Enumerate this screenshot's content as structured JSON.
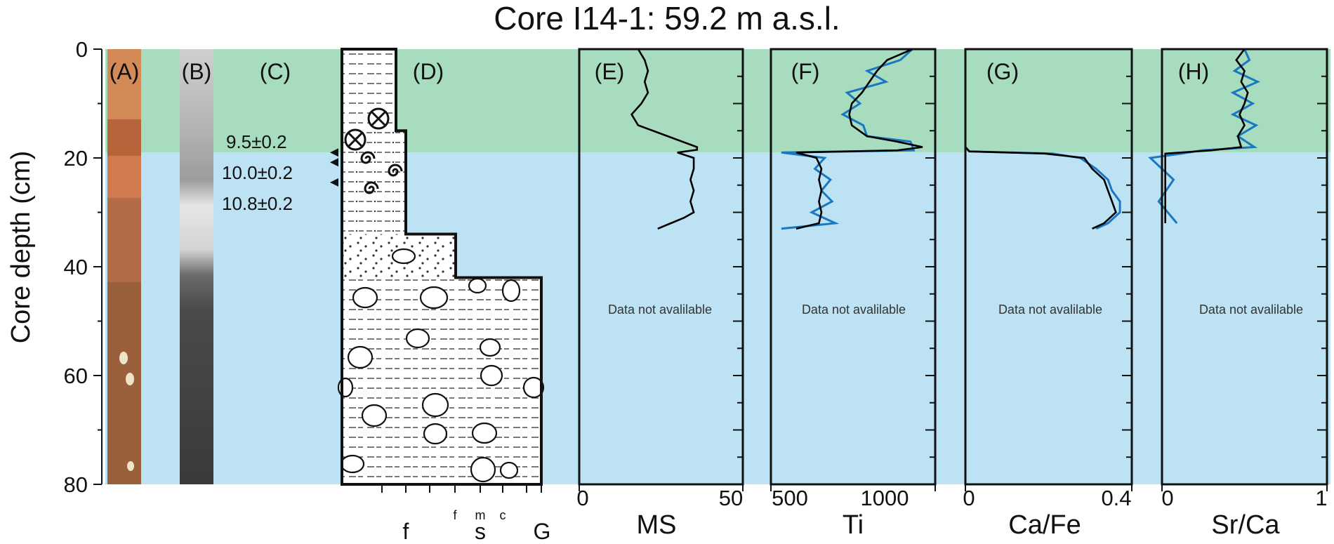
{
  "figure": {
    "title": "Core I14-1: 59.2 m a.s.l.",
    "y_axis_label": "Core depth (cm)",
    "y_ticks": [
      0,
      20,
      40,
      60,
      80
    ],
    "not_available_text": "Data not avalilable",
    "zone_colors": {
      "upper": "#a8dcbf",
      "lower": "#bde2f4"
    },
    "curve_colors": {
      "smoothed": "#000000",
      "raw": "#1a78c2"
    }
  },
  "panels": {
    "A": {
      "label": "(A)"
    },
    "B": {
      "label": "(B)"
    },
    "C": {
      "label": "(C)",
      "ages": [
        "9.5±0.2",
        "10.0±0.2",
        "10.8±0.2"
      ],
      "age_marker_depths_cm": [
        19.0,
        20.8,
        24.5
      ]
    },
    "D": {
      "label": "(D)",
      "grain_labels": {
        "f": "f",
        "s_fine": "f",
        "s_medium": "m",
        "s": "s",
        "s_coarse": "c",
        "g": "G"
      }
    },
    "E": {
      "label": "(E)",
      "xlabel": "MS",
      "xticks": [
        "0",
        "50"
      ]
    },
    "F": {
      "label": "(F)",
      "xlabel": "Ti",
      "xticks": [
        "500",
        "1000"
      ]
    },
    "G": {
      "label": "(G)",
      "xlabel": "Ca/Fe",
      "xticks": [
        "0",
        "0.4"
      ]
    },
    "H": {
      "label": "(H)",
      "xlabel": "Sr/Ca",
      "xticks": [
        "0",
        "1"
      ]
    }
  },
  "chart_data": {
    "type": "line",
    "ylabel": "Core depth (cm)",
    "ylim": [
      80,
      0
    ],
    "zone_boundary_depth_cm": 19,
    "series": [
      {
        "name": "MS",
        "xlim": [
          0,
          50
        ],
        "depth": [
          0,
          2,
          4,
          6,
          8,
          10,
          12,
          14,
          16,
          18,
          18.5,
          19,
          20,
          22,
          24,
          26,
          28,
          30,
          31,
          32,
          33
        ],
        "values": [
          18,
          20,
          21,
          20,
          21,
          19,
          16,
          18,
          27,
          36,
          36,
          30,
          35,
          35,
          34,
          35,
          34,
          35,
          32,
          28,
          24
        ]
      },
      {
        "name": "Ti",
        "xlim": [
          500,
          1150
        ],
        "depth": [
          0,
          2,
          4,
          6,
          8,
          10,
          12,
          14,
          16,
          17,
          18,
          18.6,
          19,
          20,
          22,
          24,
          26,
          28,
          30,
          32,
          33
        ],
        "values": [
          1060,
          960,
          920,
          890,
          860,
          820,
          810,
          820,
          880,
          1000,
          1100,
          1000,
          600,
          680,
          700,
          690,
          700,
          690,
          700,
          690,
          600
        ]
      },
      {
        "name": "Ca/Fe",
        "xlim": [
          0,
          0.42
        ],
        "depth": [
          0,
          5,
          10,
          15,
          18,
          18.8,
          19.2,
          20,
          22,
          24,
          26,
          28,
          30,
          32,
          33
        ],
        "values": [
          0.0,
          0.0,
          0.0,
          0.0,
          0.0,
          0.01,
          0.2,
          0.3,
          0.32,
          0.35,
          0.36,
          0.37,
          0.38,
          0.35,
          0.32
        ],
        "raw_values": [
          0.0,
          0.0,
          0.0,
          0.0,
          0.0,
          0.01,
          0.22,
          0.29,
          0.33,
          0.36,
          0.37,
          0.39,
          0.39,
          0.36,
          0.33
        ]
      },
      {
        "name": "Sr/Ca",
        "xlim": [
          0,
          1
        ],
        "depth": [
          0,
          2,
          4,
          6,
          8,
          10,
          12,
          14,
          16,
          18,
          18.6,
          19.2,
          20,
          24,
          28,
          32
        ],
        "values": [
          0.5,
          0.45,
          0.5,
          0.48,
          0.52,
          0.5,
          0.47,
          0.5,
          0.46,
          0.48,
          0.3,
          0.02,
          0.02,
          0.02,
          0.02,
          0.02
        ]
      }
    ]
  }
}
